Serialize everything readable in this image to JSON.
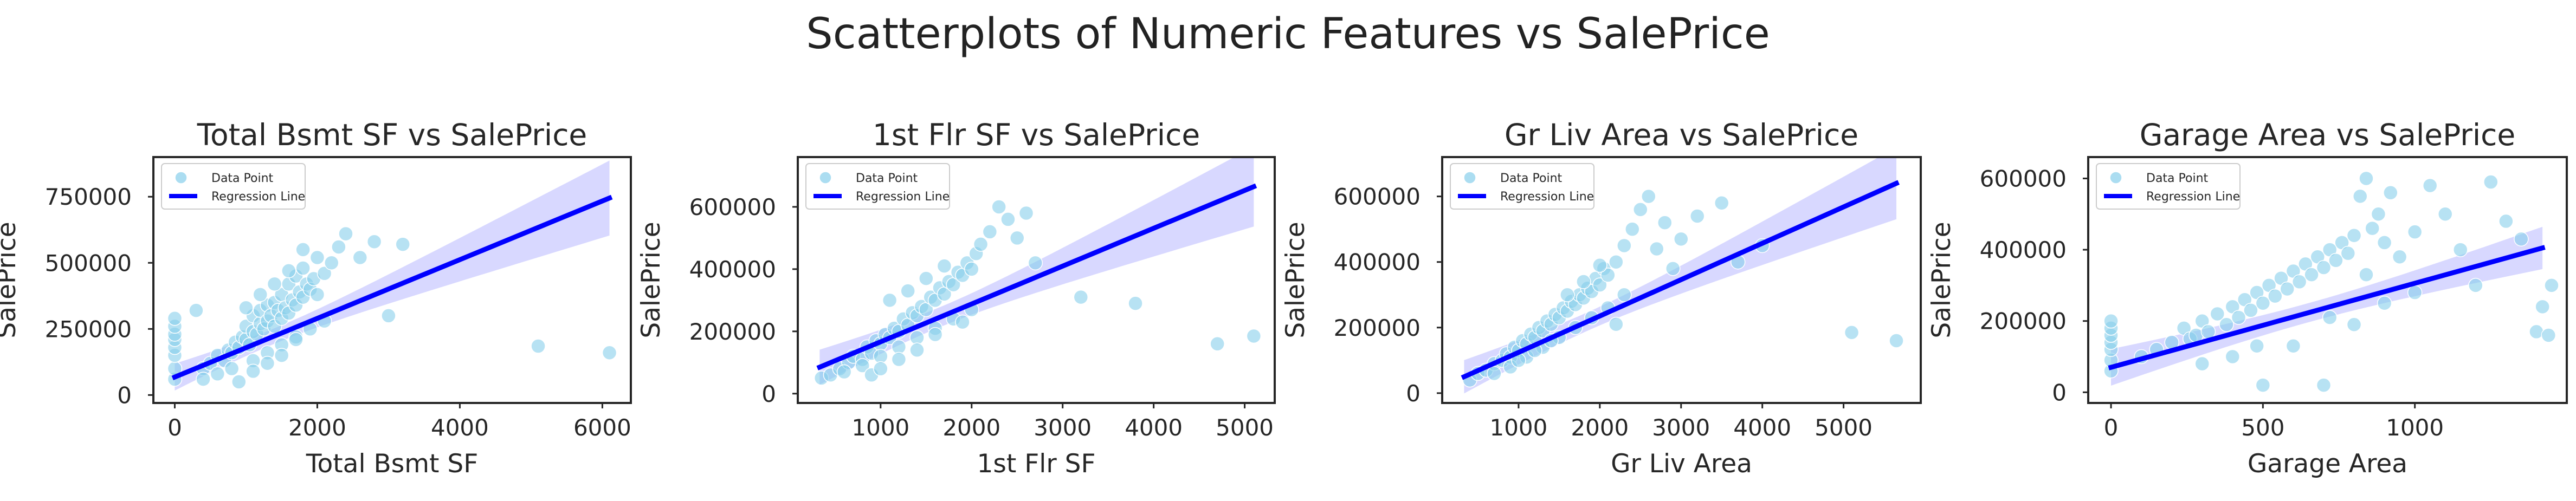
{
  "figure": {
    "suptitle": "Scatterplots of Numeric Features vs SalePrice",
    "legend": {
      "point_label": "Data Point",
      "line_label": "Regression Line",
      "placement": "upper-left"
    },
    "colors": {
      "points": "#87ceeb",
      "line": "#0000ff",
      "band": "#b8b8ff",
      "frame": "#262626",
      "text": "#262626"
    },
    "grid": false
  },
  "chart_data": [
    {
      "type": "scatter",
      "title": "Total Bsmt SF vs SalePrice",
      "xlabel": "Total Bsmt SF",
      "ylabel": "SalePrice",
      "xlim": [
        -300,
        6400
      ],
      "ylim": [
        -30000,
        900000
      ],
      "xticks": [
        0,
        2000,
        4000,
        6000
      ],
      "yticks": [
        0,
        250000,
        500000,
        750000
      ],
      "series": [
        {
          "name": "Data Point",
          "kind": "points",
          "x": [
            0,
            0,
            0,
            0,
            0,
            0,
            0,
            0,
            300,
            400,
            500,
            600,
            700,
            750,
            800,
            850,
            900,
            950,
            1000,
            1000,
            1050,
            1100,
            1100,
            1150,
            1200,
            1200,
            1250,
            1300,
            1300,
            1350,
            1400,
            1400,
            1450,
            1500,
            1500,
            1550,
            1600,
            1600,
            1650,
            1700,
            1700,
            1750,
            1800,
            1800,
            1850,
            1900,
            1950,
            2000,
            2000,
            2100,
            2200,
            2300,
            2400,
            2600,
            2800,
            3000,
            3200,
            5100,
            6100,
            400,
            600,
            800,
            1100,
            1300,
            1500,
            1700,
            1900,
            2100,
            1000,
            1200,
            1400,
            1600,
            1800,
            900,
            1100,
            1300,
            1500,
            1700
          ],
          "y": [
            60000,
            100000,
            150000,
            180000,
            210000,
            230000,
            260000,
            290000,
            320000,
            100000,
            120000,
            150000,
            130000,
            170000,
            160000,
            200000,
            180000,
            220000,
            210000,
            260000,
            190000,
            240000,
            300000,
            230000,
            270000,
            320000,
            250000,
            280000,
            340000,
            300000,
            260000,
            350000,
            320000,
            290000,
            380000,
            330000,
            310000,
            420000,
            360000,
            340000,
            450000,
            390000,
            370000,
            480000,
            420000,
            400000,
            440000,
            380000,
            520000,
            460000,
            500000,
            560000,
            610000,
            520000,
            580000,
            300000,
            570000,
            185000,
            160000,
            60000,
            80000,
            100000,
            130000,
            160000,
            190000,
            220000,
            250000,
            280000,
            330000,
            380000,
            420000,
            470000,
            550000,
            50000,
            90000,
            120000,
            150000,
            210000
          ]
        },
        {
          "name": "Regression Line",
          "kind": "line",
          "x": [
            0,
            6100
          ],
          "y": [
            68000,
            745000
          ]
        }
      ]
    },
    {
      "type": "scatter",
      "title": "1st Flr SF vs SalePrice",
      "xlabel": "1st Flr SF",
      "ylabel": "SalePrice",
      "xlim": [
        90,
        5330
      ],
      "ylim": [
        -30000,
        760000
      ],
      "xticks": [
        1000,
        2000,
        3000,
        4000,
        5000
      ],
      "yticks": [
        0,
        200000,
        400000,
        600000
      ],
      "series": [
        {
          "name": "Data Point",
          "kind": "points",
          "x": [
            350,
            450,
            550,
            650,
            700,
            800,
            850,
            900,
            950,
            1000,
            1050,
            1100,
            1150,
            1200,
            1250,
            1300,
            1350,
            1400,
            1450,
            1500,
            1550,
            1600,
            1650,
            1700,
            1750,
            1800,
            1850,
            1900,
            1950,
            2000,
            2050,
            2100,
            2200,
            2300,
            2400,
            2500,
            2600,
            2700,
            3200,
            3800,
            4700,
            5100,
            600,
            800,
            1000,
            1200,
            1400,
            1600,
            1800,
            2000,
            1100,
            1300,
            1500,
            1700,
            900,
            1000,
            1200,
            1400,
            1600,
            1900
          ],
          "y": [
            50000,
            60000,
            80000,
            100000,
            120000,
            110000,
            150000,
            130000,
            170000,
            160000,
            190000,
            180000,
            210000,
            200000,
            240000,
            220000,
            260000,
            250000,
            280000,
            270000,
            310000,
            300000,
            340000,
            320000,
            360000,
            350000,
            390000,
            380000,
            420000,
            400000,
            450000,
            480000,
            520000,
            600000,
            560000,
            500000,
            580000,
            420000,
            310000,
            290000,
            160000,
            185000,
            70000,
            90000,
            120000,
            150000,
            180000,
            210000,
            240000,
            270000,
            300000,
            330000,
            370000,
            410000,
            60000,
            80000,
            110000,
            140000,
            190000,
            230000
          ]
        },
        {
          "name": "Regression Line",
          "kind": "line",
          "x": [
            330,
            5100
          ],
          "y": [
            85000,
            665000
          ]
        }
      ]
    },
    {
      "type": "scatter",
      "title": "Gr Liv Area vs SalePrice",
      "xlabel": "Gr Liv Area",
      "ylabel": "SalePrice",
      "xlim": [
        60,
        5950
      ],
      "ylim": [
        -30000,
        720000
      ],
      "xticks": [
        1000,
        2000,
        3000,
        4000,
        5000
      ],
      "yticks": [
        0,
        200000,
        400000,
        600000
      ],
      "series": [
        {
          "name": "Data Point",
          "kind": "points",
          "x": [
            400,
            500,
            600,
            700,
            800,
            850,
            900,
            950,
            1000,
            1050,
            1100,
            1150,
            1200,
            1250,
            1300,
            1350,
            1400,
            1450,
            1500,
            1550,
            1600,
            1650,
            1700,
            1750,
            1800,
            1850,
            1900,
            1950,
            2000,
            2050,
            2100,
            2200,
            2300,
            2400,
            2500,
            2600,
            2700,
            2800,
            2900,
            3000,
            3200,
            3500,
            3700,
            4000,
            5100,
            5650,
            700,
            900,
            1100,
            1300,
            1500,
            1700,
            1900,
            2100,
            2300,
            1000,
            1200,
            1400,
            1600,
            1800,
            2000,
            2200
          ],
          "y": [
            40000,
            60000,
            70000,
            90000,
            100000,
            120000,
            110000,
            140000,
            130000,
            160000,
            150000,
            180000,
            170000,
            200000,
            190000,
            220000,
            210000,
            240000,
            230000,
            260000,
            250000,
            280000,
            270000,
            300000,
            290000,
            320000,
            310000,
            350000,
            330000,
            380000,
            360000,
            400000,
            450000,
            500000,
            560000,
            600000,
            440000,
            520000,
            380000,
            470000,
            540000,
            580000,
            400000,
            450000,
            185000,
            160000,
            60000,
            80000,
            110000,
            140000,
            170000,
            200000,
            230000,
            260000,
            300000,
            100000,
            130000,
            160000,
            300000,
            340000,
            390000,
            210000
          ]
        },
        {
          "name": "Regression Line",
          "kind": "line",
          "x": [
            330,
            5650
          ],
          "y": [
            50000,
            640000
          ]
        }
      ]
    },
    {
      "type": "scatter",
      "title": "Garage Area vs SalePrice",
      "xlabel": "Garage Area",
      "ylabel": "SalePrice",
      "xlim": [
        -75,
        1500
      ],
      "ylim": [
        -30000,
        660000
      ],
      "xticks": [
        0,
        500,
        1000
      ],
      "yticks": [
        0,
        200000,
        400000,
        600000
      ],
      "series": [
        {
          "name": "Data Point",
          "kind": "points",
          "x": [
            0,
            0,
            0,
            0,
            0,
            0,
            0,
            100,
            150,
            200,
            240,
            260,
            280,
            300,
            320,
            350,
            380,
            400,
            420,
            440,
            460,
            480,
            500,
            520,
            540,
            560,
            580,
            600,
            620,
            640,
            660,
            680,
            700,
            720,
            740,
            760,
            780,
            800,
            820,
            840,
            860,
            880,
            900,
            920,
            950,
            1000,
            1050,
            1100,
            1150,
            1200,
            1250,
            1300,
            1350,
            1400,
            1420,
            1440,
            1450,
            300,
            500,
            700,
            900,
            400,
            600,
            800,
            1000,
            480,
            720,
            840
          ],
          "y": [
            60000,
            90000,
            120000,
            140000,
            160000,
            180000,
            200000,
            100000,
            120000,
            140000,
            180000,
            150000,
            160000,
            200000,
            170000,
            220000,
            190000,
            240000,
            210000,
            260000,
            230000,
            280000,
            250000,
            300000,
            270000,
            320000,
            290000,
            340000,
            310000,
            360000,
            330000,
            380000,
            350000,
            400000,
            370000,
            420000,
            390000,
            440000,
            550000,
            600000,
            460000,
            500000,
            420000,
            560000,
            380000,
            450000,
            580000,
            500000,
            400000,
            300000,
            590000,
            480000,
            430000,
            170000,
            240000,
            160000,
            300000,
            80000,
            20000,
            20000,
            250000,
            100000,
            130000,
            190000,
            280000,
            130000,
            210000,
            330000
          ],
          "note_in_legend": false
        },
        {
          "name": "Regression Line",
          "kind": "line",
          "x": [
            0,
            1420
          ],
          "y": [
            70000,
            405000
          ]
        }
      ]
    }
  ]
}
